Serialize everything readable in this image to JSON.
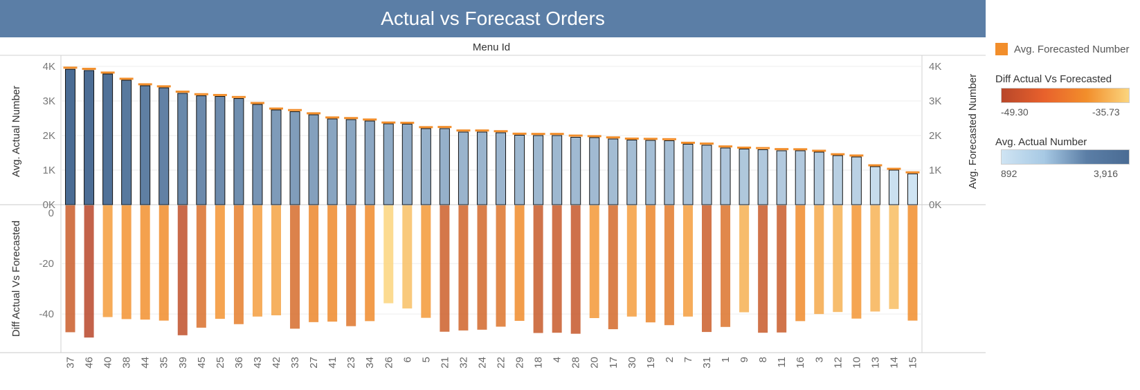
{
  "title": "Actual vs Forecast Orders",
  "chart_data": {
    "type": "bar",
    "x_header": "Menu Id",
    "categories": [
      "37",
      "46",
      "40",
      "38",
      "44",
      "35",
      "39",
      "45",
      "25",
      "36",
      "43",
      "42",
      "33",
      "27",
      "41",
      "23",
      "34",
      "26",
      "6",
      "5",
      "21",
      "32",
      "24",
      "22",
      "29",
      "18",
      "4",
      "28",
      "20",
      "17",
      "30",
      "19",
      "2",
      "7",
      "31",
      "1",
      "9",
      "8",
      "11",
      "16",
      "3",
      "12",
      "10",
      "13",
      "14",
      "15"
    ],
    "top_panel": {
      "ylabel_left": "Avg. Actual Number",
      "ylabel_right": "Avg. Forecasted Number",
      "ylim": [
        0,
        4000
      ],
      "ticks": [
        "0K",
        "1K",
        "2K",
        "3K",
        "4K"
      ],
      "actual": [
        3916,
        3880,
        3780,
        3600,
        3440,
        3380,
        3220,
        3150,
        3130,
        3070,
        2900,
        2740,
        2690,
        2600,
        2480,
        2460,
        2420,
        2340,
        2330,
        2200,
        2200,
        2100,
        2100,
        2080,
        2010,
        2000,
        2000,
        1950,
        1940,
        1900,
        1870,
        1860,
        1850,
        1750,
        1720,
        1640,
        1610,
        1590,
        1560,
        1560,
        1520,
        1420,
        1380,
        1100,
        1000,
        892
      ],
      "forecast": [
        3963,
        3929,
        3821,
        3642,
        3482,
        3423,
        3269,
        3195,
        3172,
        3114,
        2941,
        2780,
        2736,
        2643,
        2523,
        2505,
        2463,
        2376,
        2368,
        2242,
        2247,
        2146,
        2146,
        2125,
        2053,
        2047,
        2047,
        1998,
        1982,
        1946,
        1911,
        1904,
        1894,
        1791,
        1767,
        1685,
        1650,
        1637,
        1607,
        1603,
        1560,
        1459,
        1422,
        1139,
        1038,
        935
      ]
    },
    "bottom_panel": {
      "ylabel": "Diff Actual Vs Forecasted",
      "ylim": [
        -52,
        0
      ],
      "ticks": [
        "0",
        "-20",
        "-40"
      ],
      "diff": [
        -47.2,
        -49.3,
        -41.2,
        -42.0,
        -42.2,
        -42.6,
        -48.4,
        -45.4,
        -41.9,
        -44.0,
        -41.0,
        -40.5,
        -45.8,
        -43.2,
        -43.0,
        -44.8,
        -42.8,
        -35.73,
        -37.8,
        -41.5,
        -47.0,
        -46.5,
        -46.2,
        -45.0,
        -42.7,
        -47.5,
        -47.4,
        -47.8,
        -41.6,
        -46.0,
        -41.0,
        -43.3,
        -44.4,
        -41.0,
        -47.1,
        -45.1,
        -39.3,
        -47.4,
        -47.3,
        -42.8,
        -40.0,
        -39.2,
        -41.8,
        -39.0,
        -38.0,
        -42.6
      ]
    },
    "legend": {
      "forecast_item": "Avg. Forecasted Number",
      "diff_title": "Diff Actual Vs Forecasted",
      "diff_min": "-49.30",
      "diff_max": "-35.73",
      "actual_title": "Avg. Actual Number",
      "actual_min": "892",
      "actual_max": "3,916"
    },
    "colors": {
      "forecast_marker": "#f28e2b",
      "actual_low": "#cfe4f3",
      "actual_high": "#4a6c94",
      "diff_low": "#b8472a",
      "diff_mid": "#f28e2b",
      "diff_high": "#fbd57e"
    }
  }
}
